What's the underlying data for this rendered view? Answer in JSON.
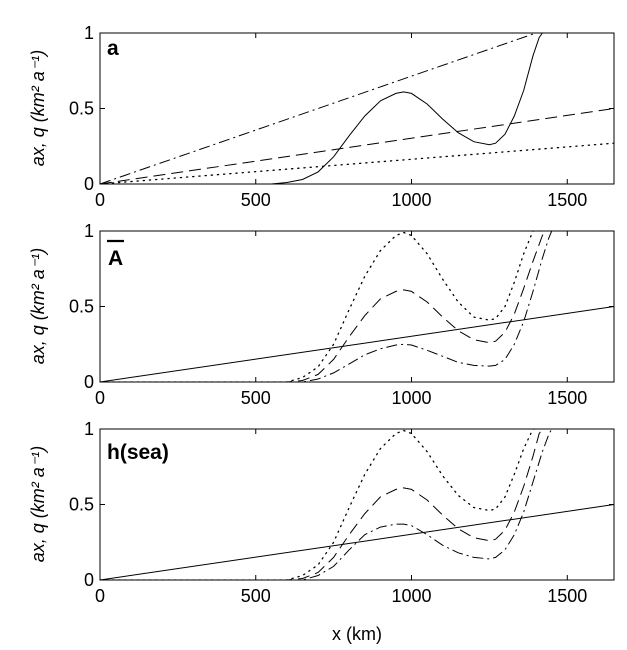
{
  "chart_data": [
    {
      "type": "line",
      "panel_label": "a",
      "ylabel": "ax, q   (km² a⁻¹)",
      "xlabel": "",
      "xlim": [
        0,
        1650
      ],
      "ylim": [
        0,
        1
      ],
      "xticks": [
        "0",
        "500",
        "1000",
        "1500"
      ],
      "yticks": [
        "0",
        "0.5",
        "1"
      ],
      "series": [
        {
          "style": "solid",
          "x": [
            0,
            550,
            600,
            650,
            700,
            750,
            800,
            850,
            900,
            950,
            975,
            1000,
            1050,
            1100,
            1150,
            1200,
            1250,
            1270,
            1300,
            1330,
            1360,
            1390,
            1410,
            1420
          ],
          "y": [
            0,
            0,
            0.01,
            0.03,
            0.08,
            0.18,
            0.32,
            0.45,
            0.55,
            0.6,
            0.61,
            0.6,
            0.53,
            0.43,
            0.34,
            0.28,
            0.26,
            0.27,
            0.33,
            0.45,
            0.62,
            0.85,
            0.97,
            1.0
          ]
        },
        {
          "style": "dash-dot",
          "x": [
            0,
            1400
          ],
          "y": [
            0,
            1.0
          ]
        },
        {
          "style": "dashed",
          "x": [
            0,
            1650
          ],
          "y": [
            0,
            0.5
          ]
        },
        {
          "style": "dotted",
          "x": [
            0,
            1650
          ],
          "y": [
            0,
            0.27
          ]
        }
      ]
    },
    {
      "type": "line",
      "panel_label": "A",
      "panel_label_overline": true,
      "ylabel": "ax, q   (km² a⁻¹)",
      "xlabel": "",
      "xlim": [
        0,
        1650
      ],
      "ylim": [
        0,
        1
      ],
      "xticks": [
        "0",
        "500",
        "1000",
        "1500"
      ],
      "yticks": [
        "0",
        "0.5",
        "1"
      ],
      "series": [
        {
          "style": "solid",
          "x": [
            0,
            1650
          ],
          "y": [
            0,
            0.5
          ]
        },
        {
          "style": "dotted",
          "x": [
            0,
            600,
            650,
            700,
            750,
            800,
            850,
            900,
            950,
            975,
            1000,
            1050,
            1100,
            1150,
            1200,
            1250,
            1270,
            1300,
            1330,
            1360,
            1390,
            1410
          ],
          "y": [
            0,
            0,
            0.03,
            0.1,
            0.25,
            0.48,
            0.7,
            0.87,
            0.97,
            0.99,
            0.97,
            0.85,
            0.68,
            0.53,
            0.43,
            0.41,
            0.42,
            0.5,
            0.66,
            0.85,
            1.0,
            1.0
          ]
        },
        {
          "style": "dashed",
          "x": [
            0,
            600,
            650,
            700,
            750,
            800,
            850,
            900,
            950,
            975,
            1000,
            1050,
            1100,
            1150,
            1200,
            1250,
            1270,
            1300,
            1330,
            1360,
            1390,
            1420,
            1430
          ],
          "y": [
            0,
            0,
            0.01,
            0.05,
            0.15,
            0.3,
            0.44,
            0.55,
            0.6,
            0.61,
            0.6,
            0.53,
            0.43,
            0.34,
            0.28,
            0.26,
            0.27,
            0.33,
            0.45,
            0.62,
            0.8,
            0.97,
            1.0
          ]
        },
        {
          "style": "dash-dot",
          "x": [
            0,
            600,
            650,
            700,
            750,
            800,
            850,
            900,
            950,
            975,
            1000,
            1050,
            1100,
            1150,
            1200,
            1250,
            1270,
            1300,
            1330,
            1360,
            1390,
            1420,
            1440,
            1450
          ],
          "y": [
            0,
            0,
            0.0,
            0.02,
            0.06,
            0.12,
            0.18,
            0.22,
            0.245,
            0.25,
            0.245,
            0.21,
            0.17,
            0.13,
            0.11,
            0.105,
            0.11,
            0.15,
            0.25,
            0.4,
            0.6,
            0.82,
            0.95,
            1.0
          ]
        }
      ]
    },
    {
      "type": "line",
      "panel_label": "h(sea)",
      "ylabel": "ax, q   (km² a⁻¹)",
      "xlabel": "x (km)",
      "xlim": [
        0,
        1650
      ],
      "ylim": [
        0,
        1
      ],
      "xticks": [
        "0",
        "500",
        "1000",
        "1500"
      ],
      "yticks": [
        "0",
        "0.5",
        "1"
      ],
      "series": [
        {
          "style": "solid",
          "x": [
            0,
            1650
          ],
          "y": [
            0,
            0.5
          ]
        },
        {
          "style": "dotted",
          "x": [
            0,
            600,
            650,
            700,
            750,
            800,
            850,
            900,
            950,
            975,
            1000,
            1050,
            1100,
            1150,
            1200,
            1250,
            1270,
            1300,
            1330,
            1360,
            1390,
            1410
          ],
          "y": [
            0,
            0,
            0.03,
            0.1,
            0.25,
            0.48,
            0.7,
            0.87,
            0.97,
            0.99,
            0.97,
            0.85,
            0.69,
            0.56,
            0.48,
            0.46,
            0.47,
            0.55,
            0.7,
            0.87,
            1.0,
            1.0
          ]
        },
        {
          "style": "dashed",
          "x": [
            0,
            600,
            650,
            700,
            750,
            800,
            850,
            900,
            950,
            975,
            1000,
            1050,
            1100,
            1150,
            1200,
            1250,
            1270,
            1300,
            1330,
            1360,
            1390,
            1410,
            1420
          ],
          "y": [
            0,
            0,
            0.01,
            0.05,
            0.15,
            0.3,
            0.44,
            0.55,
            0.6,
            0.61,
            0.6,
            0.53,
            0.43,
            0.34,
            0.28,
            0.26,
            0.27,
            0.33,
            0.45,
            0.62,
            0.82,
            0.97,
            1.0
          ]
        },
        {
          "style": "dash-dot",
          "x": [
            0,
            600,
            650,
            700,
            750,
            800,
            850,
            900,
            950,
            975,
            1000,
            1050,
            1100,
            1150,
            1200,
            1250,
            1270,
            1300,
            1330,
            1360,
            1390,
            1420,
            1440,
            1450
          ],
          "y": [
            0,
            0,
            0.0,
            0.03,
            0.09,
            0.2,
            0.3,
            0.35,
            0.37,
            0.37,
            0.36,
            0.3,
            0.23,
            0.18,
            0.15,
            0.14,
            0.15,
            0.2,
            0.3,
            0.45,
            0.65,
            0.85,
            0.96,
            1.0
          ]
        }
      ]
    }
  ]
}
